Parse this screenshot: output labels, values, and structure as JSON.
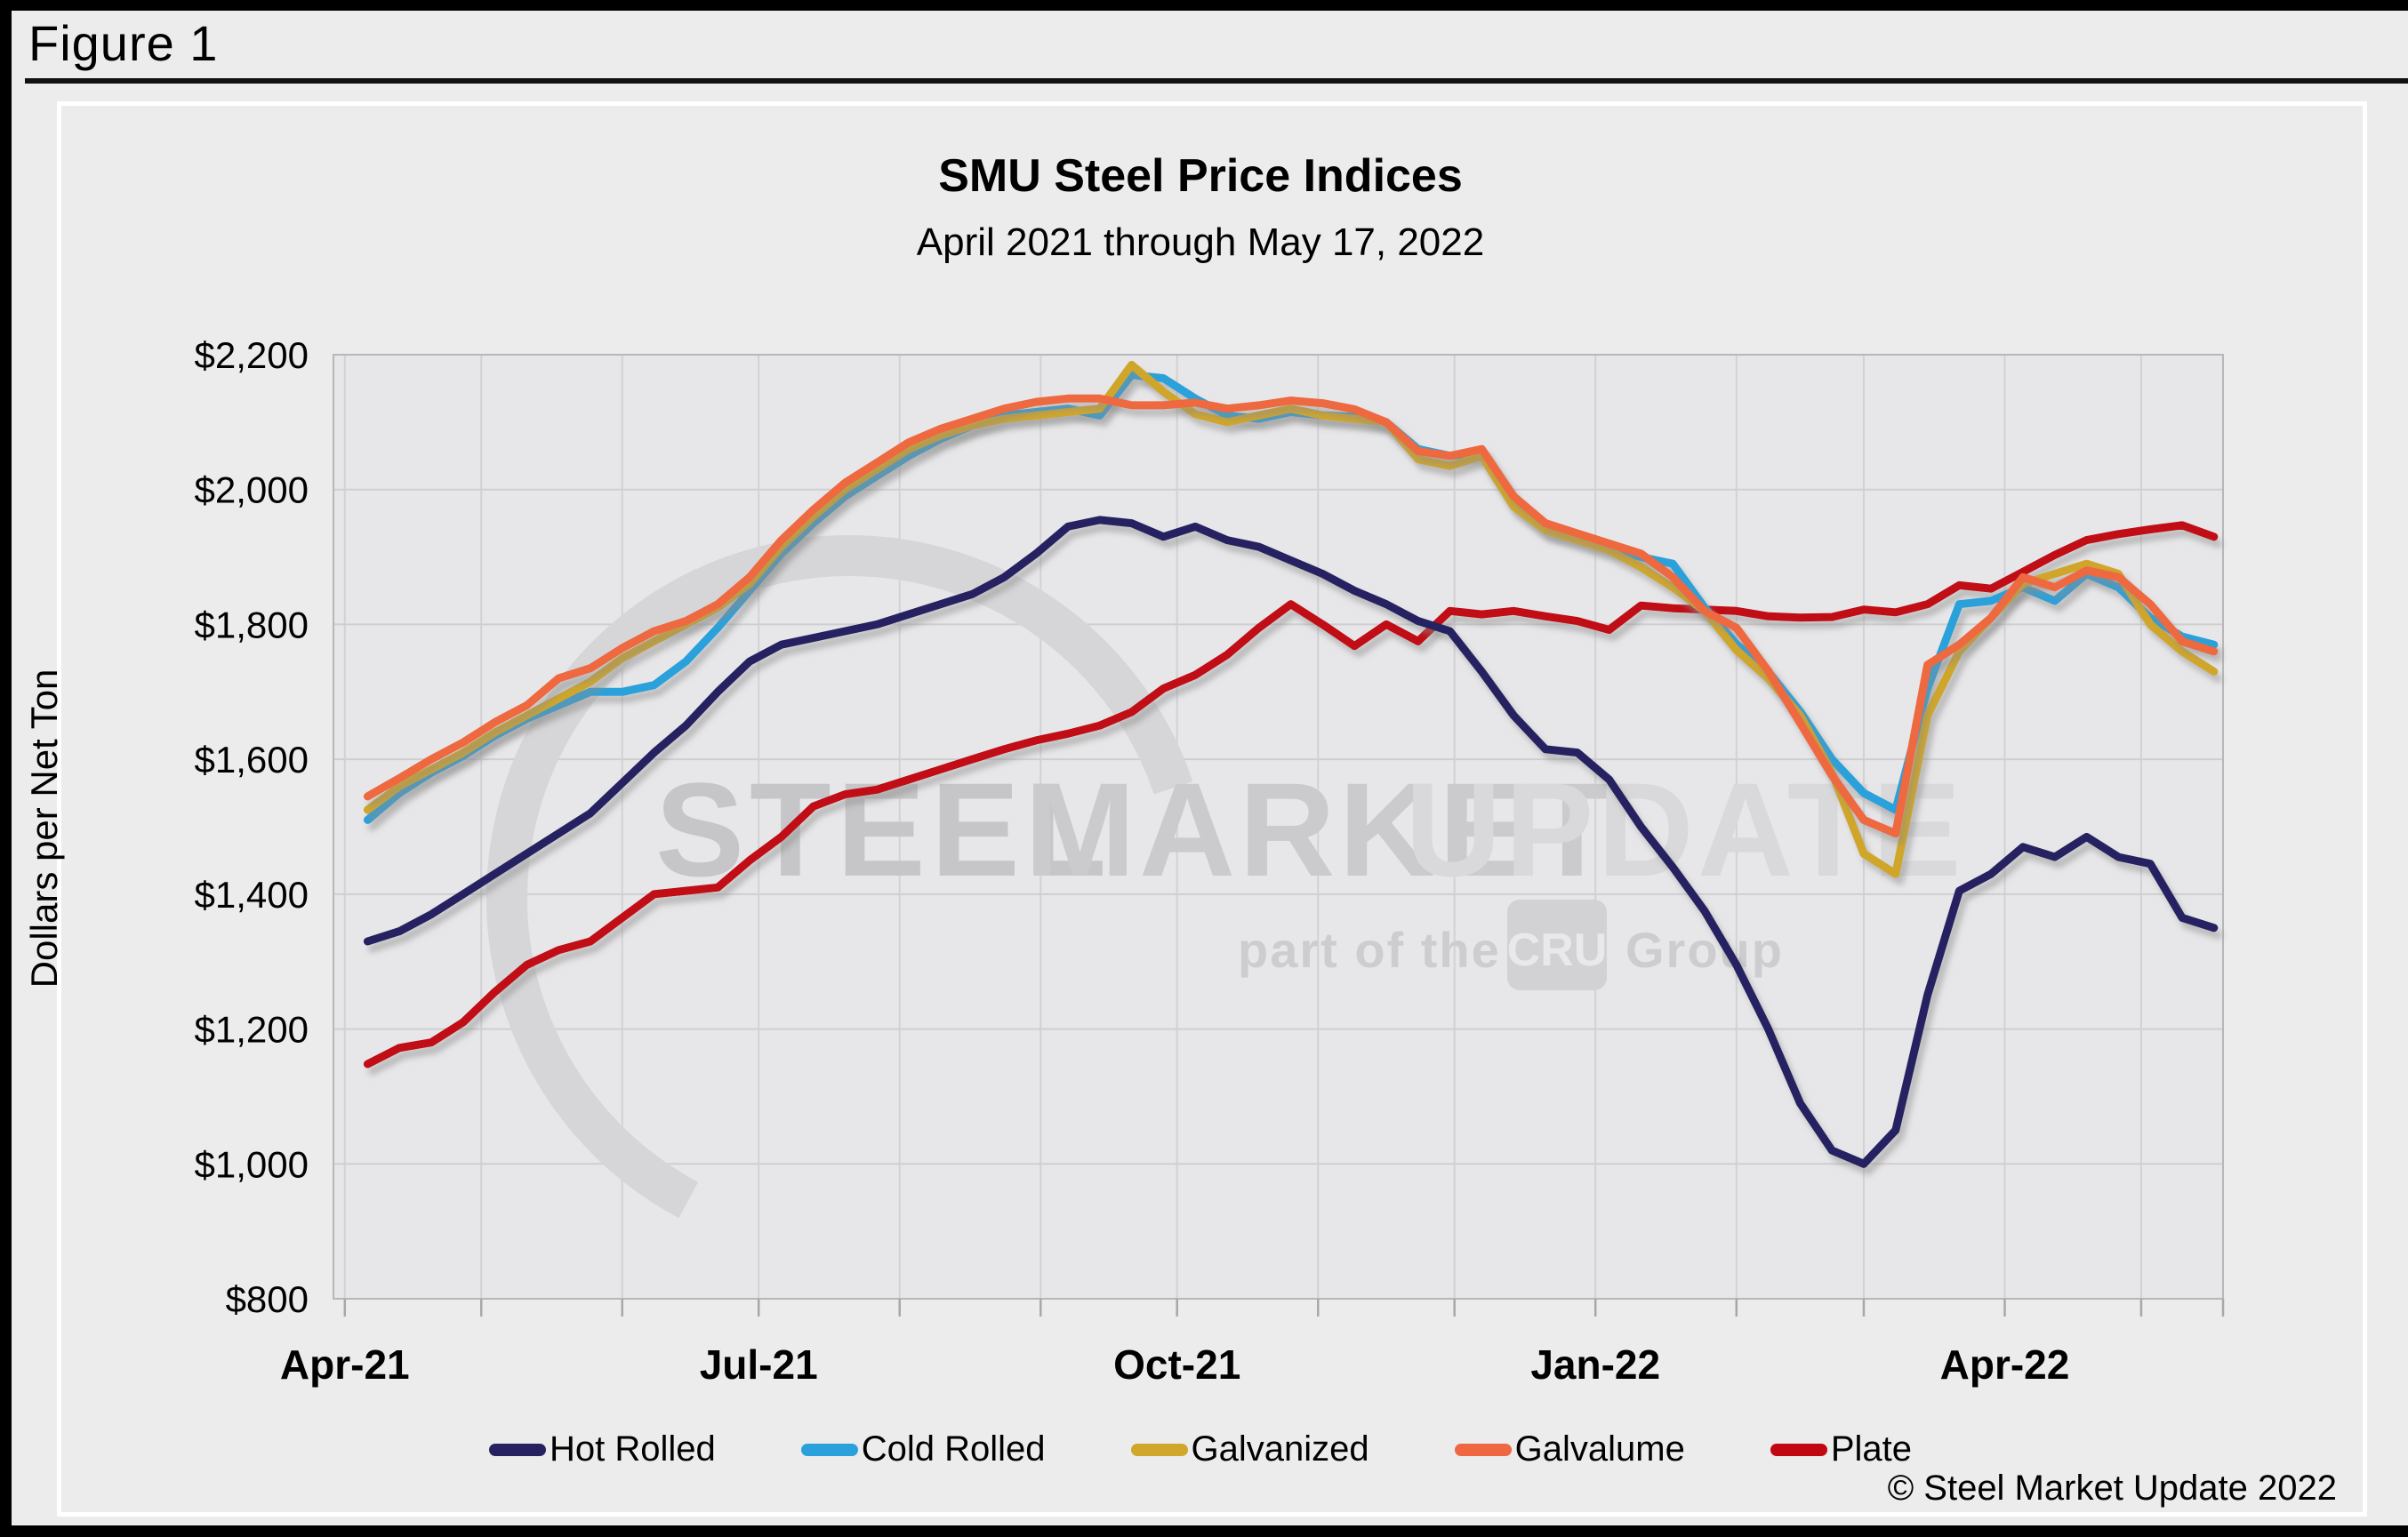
{
  "window": {
    "figure_label": "Figure 1"
  },
  "chart": {
    "title": "SMU Steel Price Indices",
    "subtitle": "April 2021 through May 17, 2022",
    "y_axis_title": "Dollars per Net Ton",
    "copyright": "© Steel Market Update 2022"
  },
  "watermark": {
    "word1": "STEEL",
    "word2": "MARKET",
    "word3": "UPDATE",
    "tagline_left": "part of the",
    "cru_badge": "CRU",
    "tagline_right": "Group"
  },
  "chart_data": {
    "type": "line",
    "title": "SMU Steel Price Indices",
    "subtitle": "April 2021 through May 17, 2022",
    "xlabel": "",
    "ylabel": "Dollars per Net Ton",
    "ylim": [
      800,
      2200
    ],
    "ytick_step": 200,
    "y_tick_labels": [
      "$2,200",
      "$2,000",
      "$1,800",
      "$1,600",
      "$1,400",
      "$1,200",
      "$1,000",
      "$800"
    ],
    "grid": true,
    "legend_position": "bottom",
    "x_unit": "days since 2021-04-01, weekly points",
    "x_domain_days": [
      -2.5,
      413
    ],
    "month_gridline_days": [
      0,
      30,
      61,
      91,
      122,
      153,
      183,
      214,
      244,
      275,
      306,
      334,
      365,
      395
    ],
    "x_tick_labels": [
      {
        "label": "Apr-21",
        "day": 0
      },
      {
        "label": "Jul-21",
        "day": 91
      },
      {
        "label": "Oct-21",
        "day": 183
      },
      {
        "label": "Jan-22",
        "day": 275
      },
      {
        "label": "Apr-22",
        "day": 365
      }
    ],
    "x_days": [
      5,
      12,
      19,
      26,
      33,
      40,
      47,
      54,
      61,
      68,
      75,
      82,
      89,
      96,
      103,
      110,
      117,
      124,
      131,
      138,
      145,
      152,
      159,
      166,
      173,
      180,
      187,
      194,
      201,
      208,
      215,
      222,
      229,
      236,
      243,
      250,
      257,
      264,
      271,
      278,
      285,
      292,
      299,
      306,
      313,
      320,
      327,
      334,
      341,
      348,
      355,
      362,
      369,
      376,
      383,
      390,
      397,
      404,
      411
    ],
    "series": [
      {
        "name": "Hot Rolled",
        "color": "#262262",
        "values": [
          1330,
          1345,
          1370,
          1400,
          1430,
          1460,
          1490,
          1520,
          1565,
          1610,
          1650,
          1700,
          1745,
          1770,
          1780,
          1790,
          1800,
          1815,
          1830,
          1845,
          1870,
          1905,
          1945,
          1955,
          1950,
          1930,
          1945,
          1925,
          1915,
          1895,
          1875,
          1850,
          1830,
          1805,
          1790,
          1730,
          1665,
          1615,
          1610,
          1570,
          1500,
          1440,
          1375,
          1295,
          1200,
          1090,
          1020,
          1000,
          1050,
          1250,
          1405,
          1430,
          1470,
          1455,
          1485,
          1455,
          1445,
          1365,
          1350
        ]
      },
      {
        "name": "Cold Rolled",
        "color": "#2BA1DB",
        "values": [
          1510,
          1550,
          1580,
          1605,
          1635,
          1660,
          1680,
          1700,
          1700,
          1710,
          1745,
          1795,
          1850,
          1905,
          1950,
          1990,
          2020,
          2050,
          2075,
          2095,
          2110,
          2115,
          2120,
          2110,
          2170,
          2165,
          2135,
          2110,
          2105,
          2115,
          2110,
          2108,
          2100,
          2060,
          2050,
          2055,
          1980,
          1940,
          1930,
          1915,
          1900,
          1890,
          1825,
          1771,
          1730,
          1671,
          1600,
          1550,
          1525,
          1705,
          1830,
          1835,
          1855,
          1835,
          1875,
          1855,
          1810,
          1782,
          1770
        ]
      },
      {
        "name": "Galvanized",
        "color": "#D0A62B",
        "values": [
          1525,
          1560,
          1585,
          1610,
          1640,
          1665,
          1690,
          1715,
          1750,
          1775,
          1800,
          1825,
          1860,
          1915,
          1960,
          2000,
          2030,
          2060,
          2080,
          2095,
          2105,
          2110,
          2115,
          2120,
          2185,
          2145,
          2112,
          2100,
          2110,
          2120,
          2110,
          2105,
          2100,
          2045,
          2035,
          2050,
          1975,
          1940,
          1925,
          1910,
          1885,
          1855,
          1820,
          1762,
          1720,
          1665,
          1580,
          1460,
          1430,
          1665,
          1760,
          1810,
          1860,
          1875,
          1890,
          1875,
          1800,
          1760,
          1730
        ]
      },
      {
        "name": "Galvalume",
        "color": "#EE6740",
        "values": [
          1545,
          1572,
          1600,
          1625,
          1655,
          1680,
          1720,
          1735,
          1765,
          1790,
          1805,
          1830,
          1870,
          1925,
          1970,
          2010,
          2040,
          2070,
          2090,
          2105,
          2120,
          2130,
          2135,
          2135,
          2125,
          2125,
          2129,
          2120,
          2125,
          2132,
          2128,
          2119,
          2100,
          2057,
          2050,
          2060,
          1990,
          1950,
          1935,
          1920,
          1905,
          1870,
          1820,
          1795,
          1731,
          1654,
          1576,
          1510,
          1490,
          1740,
          1770,
          1810,
          1870,
          1855,
          1880,
          1870,
          1830,
          1775,
          1760
        ]
      },
      {
        "name": "Plate",
        "color": "#C00712",
        "values": [
          1148,
          1172,
          1180,
          1210,
          1255,
          1295,
          1317,
          1330,
          1365,
          1400,
          1405,
          1410,
          1450,
          1485,
          1530,
          1548,
          1555,
          1570,
          1585,
          1600,
          1615,
          1628,
          1638,
          1650,
          1670,
          1705,
          1725,
          1755,
          1795,
          1830,
          1800,
          1768,
          1800,
          1775,
          1820,
          1815,
          1820,
          1812,
          1805,
          1792,
          1828,
          1824,
          1822,
          1820,
          1812,
          1810,
          1811,
          1822,
          1818,
          1830,
          1858,
          1853,
          1878,
          1903,
          1925,
          1934,
          1941,
          1947,
          1930
        ]
      }
    ]
  }
}
